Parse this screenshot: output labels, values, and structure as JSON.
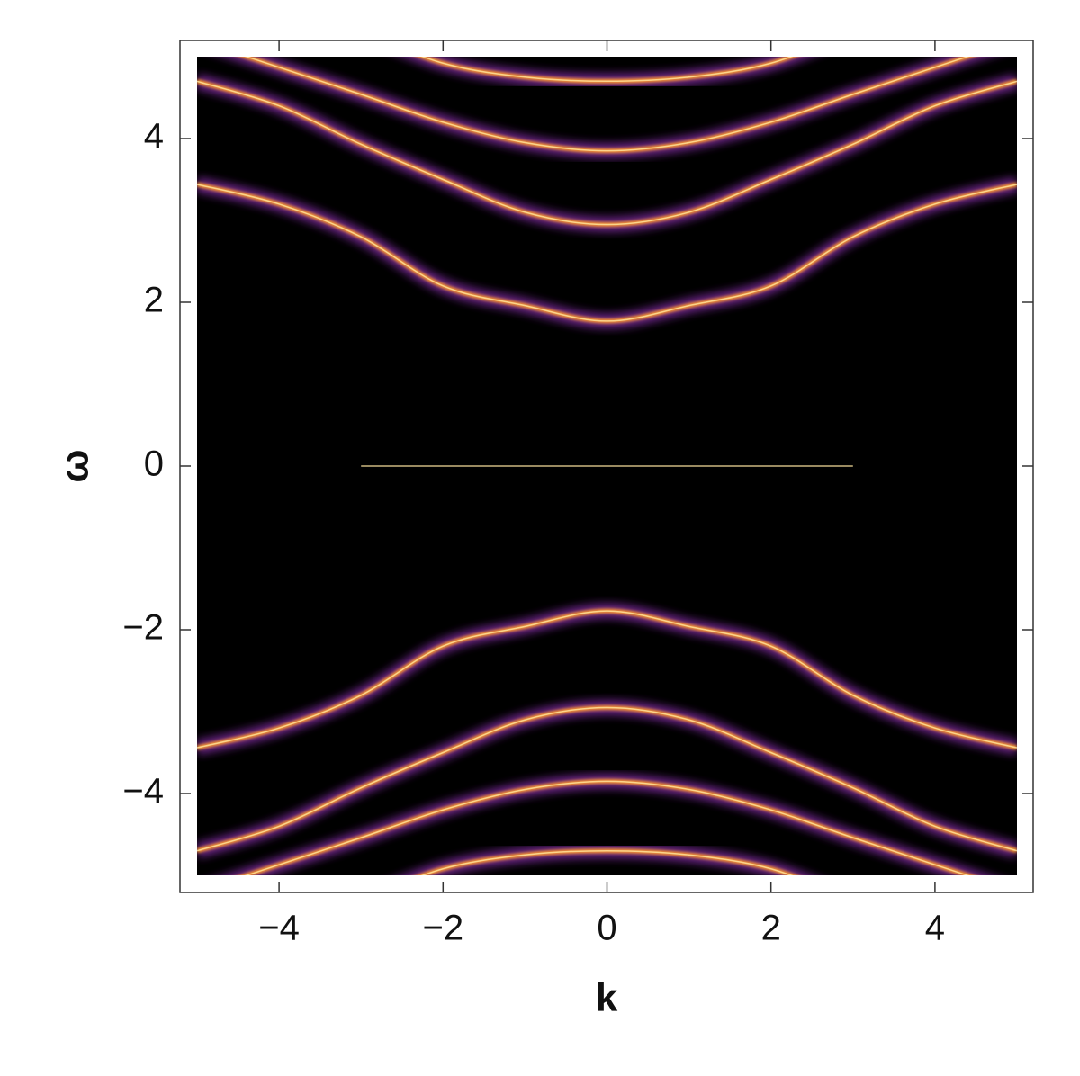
{
  "chart_data": {
    "type": "line",
    "background": "#000000",
    "color": "#ff9a2a",
    "glow_color": "#7a2a9a",
    "xlabel": "k",
    "ylabel": "ω",
    "xlim": [
      -5,
      5
    ],
    "ylim": [
      -5,
      5
    ],
    "xticks": [
      {
        "value": -4,
        "label": "−4"
      },
      {
        "value": -2,
        "label": "−2"
      },
      0,
      2,
      4
    ],
    "yticks": [
      {
        "value": -4,
        "label": "−4"
      },
      {
        "value": -2,
        "label": "−2"
      },
      0,
      2,
      4
    ],
    "x": [
      -5,
      -4,
      -3,
      -2,
      -1,
      0,
      1,
      2,
      3,
      4,
      5
    ],
    "series": [
      {
        "values": [
          3.44,
          3.2,
          2.8,
          2.2,
          1.96,
          1.77,
          1.96,
          2.2,
          2.8,
          3.2,
          3.44
        ]
      },
      {
        "values": [
          4.7,
          4.4,
          3.93,
          3.5,
          3.1,
          2.95,
          3.1,
          3.5,
          3.93,
          4.4,
          4.7
        ]
      },
      {
        "values": [
          5.2,
          4.87,
          4.54,
          4.2,
          3.95,
          3.85,
          3.95,
          4.2,
          4.54,
          4.87,
          5.2
        ]
      },
      {
        "values": [
          null,
          null,
          5.3,
          4.92,
          4.75,
          4.7,
          4.75,
          4.92,
          5.3,
          null,
          null
        ]
      },
      {
        "values": [
          null,
          null,
          0,
          0,
          0,
          0,
          0,
          0,
          0,
          null,
          null
        ]
      },
      {
        "values": [
          -3.44,
          -3.2,
          -2.8,
          -2.2,
          -1.96,
          -1.77,
          -1.96,
          -2.2,
          -2.8,
          -3.2,
          -3.44
        ]
      },
      {
        "values": [
          -4.7,
          -4.4,
          -3.93,
          -3.5,
          -3.1,
          -2.95,
          -3.1,
          -3.5,
          -3.93,
          -4.4,
          -4.7
        ]
      },
      {
        "values": [
          -5.2,
          -4.87,
          -4.54,
          -4.2,
          -3.95,
          -3.85,
          -3.95,
          -4.2,
          -4.54,
          -4.87,
          -5.2
        ]
      },
      {
        "values": [
          null,
          null,
          -5.3,
          -4.92,
          -4.75,
          -4.7,
          -4.75,
          -4.92,
          -5.3,
          null,
          null
        ]
      }
    ]
  }
}
